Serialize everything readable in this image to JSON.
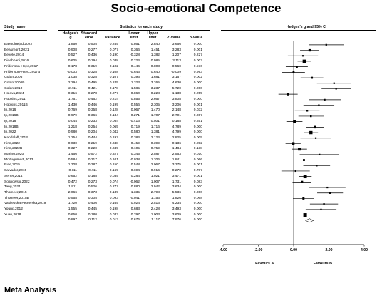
{
  "title": "Socio-emotional Competence",
  "footer": "Meta Analysis",
  "headers": {
    "study_name": "Study name",
    "stats_group": "Statistics for each study",
    "plot_group": "Hedges's g and 95% CI",
    "hedges_g": [
      "Hedges's",
      "g"
    ],
    "se": [
      "Standard",
      "error"
    ],
    "variance": "Variance",
    "lower": [
      "Lower",
      "limit"
    ],
    "upper": [
      "Upper",
      "limit"
    ],
    "z": "Z-Value",
    "p": "p-Value"
  },
  "chart_data": {
    "type": "forest",
    "axis": {
      "min": -4,
      "max": 4,
      "ticks": [
        "-4.00",
        "-2.00",
        "0.00",
        "2.00",
        "4.00"
      ]
    },
    "favours_left": "Favours A",
    "favours_right": "Favours B",
    "studies": [
      {
        "name": "Bazoolnejad,2022",
        "g": "1.850",
        "se": "0.505",
        "var": "0.255",
        "lower": "0.861",
        "upper": "2.840",
        "z": "3.666",
        "p": "0.000"
      },
      {
        "name": "Beaumont,2021",
        "g": "0.908",
        "se": "0.277",
        "var": "0.077",
        "lower": "0.366",
        "upper": "1.451",
        "z": "3.283",
        "p": "0.001"
      },
      {
        "name": "Bekele,2014",
        "g": "0.527",
        "se": "0.436",
        "var": "0.190",
        "lower": "-0.328",
        "upper": "1.382",
        "z": "1.207",
        "p": "0.227"
      },
      {
        "name": "Didehbani,2016",
        "g": "0.605",
        "se": "0.194",
        "var": "0.038",
        "lower": "0.224",
        "upper": "0.985",
        "z": "3.113",
        "p": "0.002"
      },
      {
        "name": "Fridenson-Hayo,2017",
        "g": "0.178",
        "se": "0.319",
        "var": "0.102",
        "lower": "-0.446",
        "upper": "0.803",
        "z": "0.560",
        "p": "0.576"
      },
      {
        "name": "Fridenson-Hayo,2017B",
        "g": "-0.003",
        "se": "0.328",
        "var": "0.108",
        "lower": "-0.646",
        "upper": "0.640",
        "z": "-0.009",
        "p": "0.993"
      },
      {
        "name": "Golan,2006",
        "g": "1.038",
        "se": "0.328",
        "var": "0.107",
        "lower": "0.396",
        "upper": "1.681",
        "z": "3.167",
        "p": "0.002"
      },
      {
        "name": "Golan,2006B",
        "g": "2.294",
        "se": "0.495",
        "var": "0.245",
        "lower": "1.323",
        "upper": "3.265",
        "z": "4.630",
        "p": "0.000"
      },
      {
        "name": "Golan,2010",
        "g": "2.411",
        "se": "0.421",
        "var": "0.178",
        "lower": "1.585",
        "upper": "3.237",
        "z": "5.720",
        "p": "0.000"
      },
      {
        "name": "Holeva,2024",
        "g": "-0.316",
        "se": "0.278",
        "var": "0.077",
        "lower": "-0.860",
        "upper": "0.228",
        "z": "-1.138",
        "p": "0.255"
      },
      {
        "name": "Hopkins,2011",
        "g": "1.761",
        "se": "0.462",
        "var": "0.214",
        "lower": "0.855",
        "upper": "2.667",
        "z": "3.808",
        "p": "0.000"
      },
      {
        "name": "Hopkins,2011B",
        "g": "1.430",
        "se": "0.446",
        "var": "0.199",
        "lower": "0.556",
        "upper": "2.305",
        "z": "3.206",
        "p": "0.001"
      },
      {
        "name": "Ip,2016",
        "g": "0.769",
        "se": "0.358",
        "var": "0.128",
        "lower": "0.067",
        "upper": "1.470",
        "z": "2.148",
        "p": "0.032"
      },
      {
        "name": "Ip,2016B",
        "g": "0.979",
        "se": "0.366",
        "var": "0.134",
        "lower": "0.271",
        "upper": "1.707",
        "z": "2.701",
        "p": "0.007"
      },
      {
        "name": "Ip,2018",
        "g": "0.044",
        "se": "0.233",
        "var": "0.054",
        "lower": "-0.413",
        "upper": "0.501",
        "z": "0.188",
        "p": "0.851"
      },
      {
        "name": "Ip,2018B",
        "g": "1.218",
        "se": "0.254",
        "var": "0.065",
        "lower": "0.719",
        "upper": "1.716",
        "z": "4.789",
        "p": "0.000"
      },
      {
        "name": "Ip,2022",
        "g": "0.980",
        "se": "0.204",
        "var": "0.042",
        "lower": "0.580",
        "upper": "1.381",
        "z": "4.799",
        "p": "0.000"
      },
      {
        "name": "Kandalaft,2013",
        "g": "1.254",
        "se": "0.444",
        "var": "0.197",
        "lower": "0.384",
        "upper": "2.124",
        "z": "2.825",
        "p": "0.005"
      },
      {
        "name": "Kirst,2022",
        "g": "-0.030",
        "se": "0.219",
        "var": "0.048",
        "lower": "-0.459",
        "upper": "0.399",
        "z": "-0.136",
        "p": "0.892"
      },
      {
        "name": "Kirst,2022B",
        "g": "0.327",
        "se": "0.220",
        "var": "0.049",
        "lower": "-0.105",
        "upper": "0.759",
        "z": "1.484",
        "p": "0.138"
      },
      {
        "name": "Marino,2020",
        "g": "1.466",
        "se": "0.572",
        "var": "0.327",
        "lower": "0.345",
        "upper": "2.587",
        "z": "2.563",
        "p": "0.010"
      },
      {
        "name": "Modugumudi,2013",
        "g": "0.584",
        "se": "0.317",
        "var": "0.101",
        "lower": "-0.038",
        "upper": "1.206",
        "z": "1.841",
        "p": "0.066"
      },
      {
        "name": "Rice,2015",
        "g": "1.308",
        "se": "0.387",
        "var": "0.150",
        "lower": "0.548",
        "upper": "2.067",
        "z": "3.375",
        "p": "0.001"
      },
      {
        "name": "Salvador,2015",
        "g": "0.111",
        "se": "0.411",
        "var": "0.169",
        "lower": "-0.694",
        "upper": "0.916",
        "z": "0.270",
        "p": "0.787"
      },
      {
        "name": "Serret,2014",
        "g": "0.652",
        "se": "0.188",
        "var": "0.035",
        "lower": "0.284",
        "upper": "1.021",
        "z": "3.471",
        "p": "0.001"
      },
      {
        "name": "Sosnowski,2022",
        "g": "0.472",
        "se": "0.273",
        "var": "0.074",
        "lower": "-0.062",
        "upper": "1.007",
        "z": "1.731",
        "p": "0.083"
      },
      {
        "name": "Tang,2021",
        "g": "1.911",
        "se": "0.526",
        "var": "0.277",
        "lower": "0.880",
        "upper": "2.942",
        "z": "3.634",
        "p": "0.000"
      },
      {
        "name": "Thomeer,2015",
        "g": "2.066",
        "se": "0.373",
        "var": "0.139",
        "lower": "1.335",
        "upper": "2.798",
        "z": "5.536",
        "p": "0.000"
      },
      {
        "name": "Thomeer,2015B",
        "g": "0.558",
        "se": "0.305",
        "var": "0.093",
        "lower": "-0.041",
        "upper": "1.156",
        "z": "1.826",
        "p": "0.068"
      },
      {
        "name": "Vasilevska Petrovska,2019",
        "g": "1.720",
        "se": "0.406",
        "var": "0.165",
        "lower": "0.924",
        "upper": "2.516",
        "z": "4.234",
        "p": "0.000"
      },
      {
        "name": "Young,2012",
        "g": "1.555",
        "se": "0.445",
        "var": "0.198",
        "lower": "0.683",
        "upper": "2.428",
        "z": "3.493",
        "p": "0.000"
      },
      {
        "name": "Yuan,2018",
        "g": "0.650",
        "se": "0.180",
        "var": "0.032",
        "lower": "0.297",
        "upper": "1.003",
        "z": "3.609",
        "p": "0.000"
      }
    ],
    "summary": {
      "g": "0.897",
      "se": "0.112",
      "var": "0.013",
      "lower": "0.676",
      "upper": "1.117",
      "z": "7.976",
      "p": "0.000"
    }
  }
}
